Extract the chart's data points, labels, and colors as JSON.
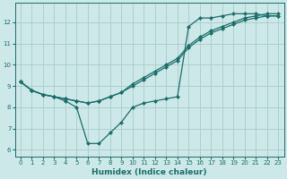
{
  "xlabel": "Humidex (Indice chaleur)",
  "background_color": "#cce8e8",
  "line_color": "#1a6e6a",
  "grid_color": "#aacccc",
  "xlim": [
    -0.5,
    23.5
  ],
  "ylim": [
    5.7,
    12.9
  ],
  "yticks": [
    6,
    7,
    8,
    9,
    10,
    11,
    12
  ],
  "xticks": [
    0,
    1,
    2,
    3,
    4,
    5,
    6,
    7,
    8,
    9,
    10,
    11,
    12,
    13,
    14,
    15,
    16,
    17,
    18,
    19,
    20,
    21,
    22,
    23
  ],
  "series": [
    [
      9.2,
      8.8,
      8.6,
      8.5,
      8.3,
      8.0,
      6.3,
      6.3,
      6.8,
      7.3,
      8.0,
      8.2,
      8.3,
      8.4,
      8.5,
      11.8,
      12.2,
      12.2,
      12.3,
      12.4,
      12.4,
      12.4,
      12.3,
      12.3
    ],
    [
      9.2,
      8.8,
      8.6,
      8.5,
      8.4,
      8.3,
      8.2,
      8.3,
      8.5,
      8.7,
      9.0,
      9.3,
      9.6,
      9.9,
      10.2,
      10.8,
      11.2,
      11.5,
      11.7,
      11.9,
      12.1,
      12.2,
      12.3,
      12.3
    ],
    [
      9.2,
      8.8,
      8.6,
      8.5,
      8.4,
      8.3,
      8.2,
      8.3,
      8.5,
      8.7,
      9.1,
      9.4,
      9.7,
      10.0,
      10.3,
      10.9,
      11.3,
      11.6,
      11.8,
      12.0,
      12.2,
      12.3,
      12.4,
      12.4
    ]
  ]
}
